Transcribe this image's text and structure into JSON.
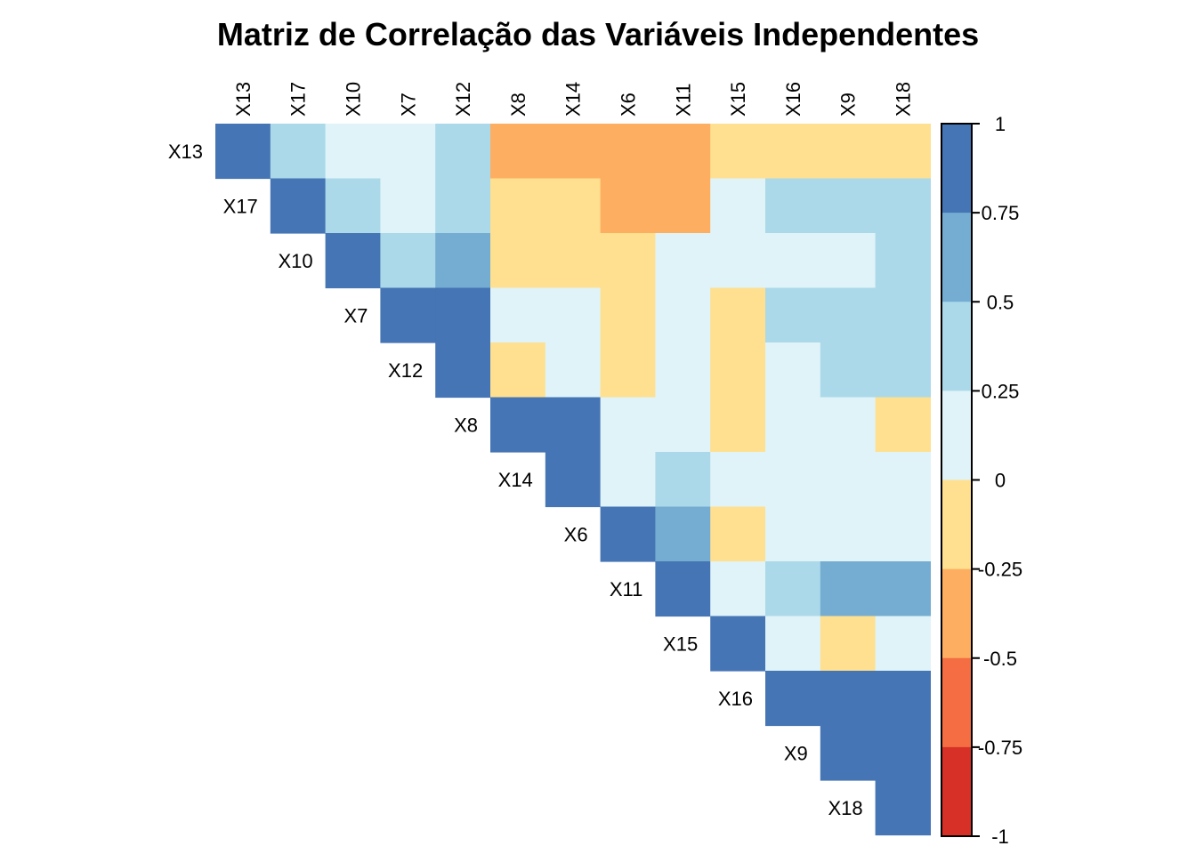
{
  "chart_data": {
    "type": "heatmap",
    "title": "Matriz de Correlação das Variáveis Independentes",
    "layout": "upper-triangle",
    "variables": [
      "X13",
      "X17",
      "X10",
      "X7",
      "X12",
      "X8",
      "X14",
      "X6",
      "X11",
      "X15",
      "X16",
      "X9",
      "X18"
    ],
    "matrix": [
      [
        1.0,
        0.4,
        0.1,
        0.1,
        0.4,
        -0.4,
        -0.4,
        -0.4,
        -0.4,
        -0.1,
        -0.1,
        -0.1,
        -0.1
      ],
      [
        null,
        1.0,
        0.4,
        0.1,
        0.4,
        -0.1,
        -0.1,
        -0.4,
        -0.4,
        0.1,
        0.4,
        0.4,
        0.4
      ],
      [
        null,
        null,
        1.0,
        0.4,
        0.6,
        -0.1,
        -0.1,
        -0.1,
        0.1,
        0.1,
        0.1,
        0.1,
        0.4
      ],
      [
        null,
        null,
        null,
        1.0,
        1.0,
        0.1,
        0.1,
        -0.1,
        0.1,
        -0.1,
        0.4,
        0.4,
        0.4
      ],
      [
        null,
        null,
        null,
        null,
        1.0,
        -0.1,
        0.1,
        -0.1,
        0.1,
        -0.1,
        0.1,
        0.4,
        0.4
      ],
      [
        null,
        null,
        null,
        null,
        null,
        1.0,
        1.0,
        0.1,
        0.1,
        -0.1,
        0.1,
        0.1,
        -0.1
      ],
      [
        null,
        null,
        null,
        null,
        null,
        null,
        1.0,
        0.1,
        0.4,
        0.1,
        0.1,
        0.1,
        0.1
      ],
      [
        null,
        null,
        null,
        null,
        null,
        null,
        null,
        1.0,
        0.6,
        -0.1,
        0.1,
        0.1,
        0.1
      ],
      [
        null,
        null,
        null,
        null,
        null,
        null,
        null,
        null,
        1.0,
        0.1,
        0.4,
        0.6,
        0.6
      ],
      [
        null,
        null,
        null,
        null,
        null,
        null,
        null,
        null,
        null,
        1.0,
        0.1,
        -0.1,
        0.1
      ],
      [
        null,
        null,
        null,
        null,
        null,
        null,
        null,
        null,
        null,
        null,
        1.0,
        1.0,
        1.0
      ],
      [
        null,
        null,
        null,
        null,
        null,
        null,
        null,
        null,
        null,
        null,
        null,
        1.0,
        1.0
      ],
      [
        null,
        null,
        null,
        null,
        null,
        null,
        null,
        null,
        null,
        null,
        null,
        null,
        1.0
      ]
    ],
    "colorbar": {
      "range": [
        -1,
        1
      ],
      "ticks": [
        "1",
        "0.75",
        "0.5",
        "0.25",
        "0",
        "-0.25",
        "-0.5",
        "-0.75",
        "-1"
      ],
      "bins": [
        {
          "from": 0.75,
          "to": 1.0,
          "color": "#4575b4"
        },
        {
          "from": 0.5,
          "to": 0.75,
          "color": "#74add1"
        },
        {
          "from": 0.25,
          "to": 0.5,
          "color": "#abd9e9"
        },
        {
          "from": 0.0,
          "to": 0.25,
          "color": "#e0f3f8"
        },
        {
          "from": -0.25,
          "to": 0.0,
          "color": "#fee090"
        },
        {
          "from": -0.5,
          "to": -0.25,
          "color": "#fdae61"
        },
        {
          "from": -0.75,
          "to": -0.5,
          "color": "#f46d43"
        },
        {
          "from": -1.0,
          "to": -0.75,
          "color": "#d73027"
        }
      ]
    }
  }
}
